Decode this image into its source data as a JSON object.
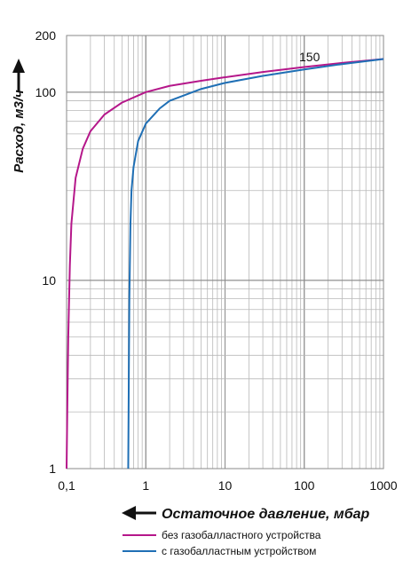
{
  "chart_data": {
    "type": "line",
    "x_scale": "log",
    "y_scale": "log",
    "xlim": [
      0.1,
      1000
    ],
    "ylim": [
      1,
      200
    ],
    "grid": true,
    "xlabel": "Остаточное давление, мбар",
    "ylabel": "Расход, м3/ч",
    "x_tick_labels": [
      "0,1",
      "1",
      "10",
      "100",
      "1000"
    ],
    "y_tick_labels": [
      "1",
      "10",
      "100",
      "200"
    ],
    "annotation": "150",
    "legend_position": "bottom",
    "series": [
      {
        "name": "без газобалластного устройства",
        "color": "#b5178a",
        "points": [
          [
            0.1,
            1
          ],
          [
            0.102,
            2
          ],
          [
            0.105,
            5
          ],
          [
            0.11,
            12
          ],
          [
            0.115,
            20
          ],
          [
            0.13,
            35
          ],
          [
            0.16,
            50
          ],
          [
            0.2,
            62
          ],
          [
            0.3,
            76
          ],
          [
            0.5,
            88
          ],
          [
            1,
            100
          ],
          [
            2,
            108
          ],
          [
            5,
            115
          ],
          [
            10,
            120
          ],
          [
            30,
            128
          ],
          [
            100,
            136
          ],
          [
            300,
            143
          ],
          [
            1000,
            150
          ]
        ]
      },
      {
        "name": "с газобалластным устройством",
        "color": "#1f6fb5",
        "points": [
          [
            0.6,
            1
          ],
          [
            0.61,
            3
          ],
          [
            0.62,
            8
          ],
          [
            0.64,
            20
          ],
          [
            0.66,
            30
          ],
          [
            0.7,
            40
          ],
          [
            0.8,
            55
          ],
          [
            1,
            68
          ],
          [
            1.5,
            82
          ],
          [
            2,
            90
          ],
          [
            5,
            104
          ],
          [
            10,
            112
          ],
          [
            30,
            122
          ],
          [
            100,
            132
          ],
          [
            300,
            141
          ],
          [
            1000,
            150
          ]
        ]
      }
    ]
  }
}
